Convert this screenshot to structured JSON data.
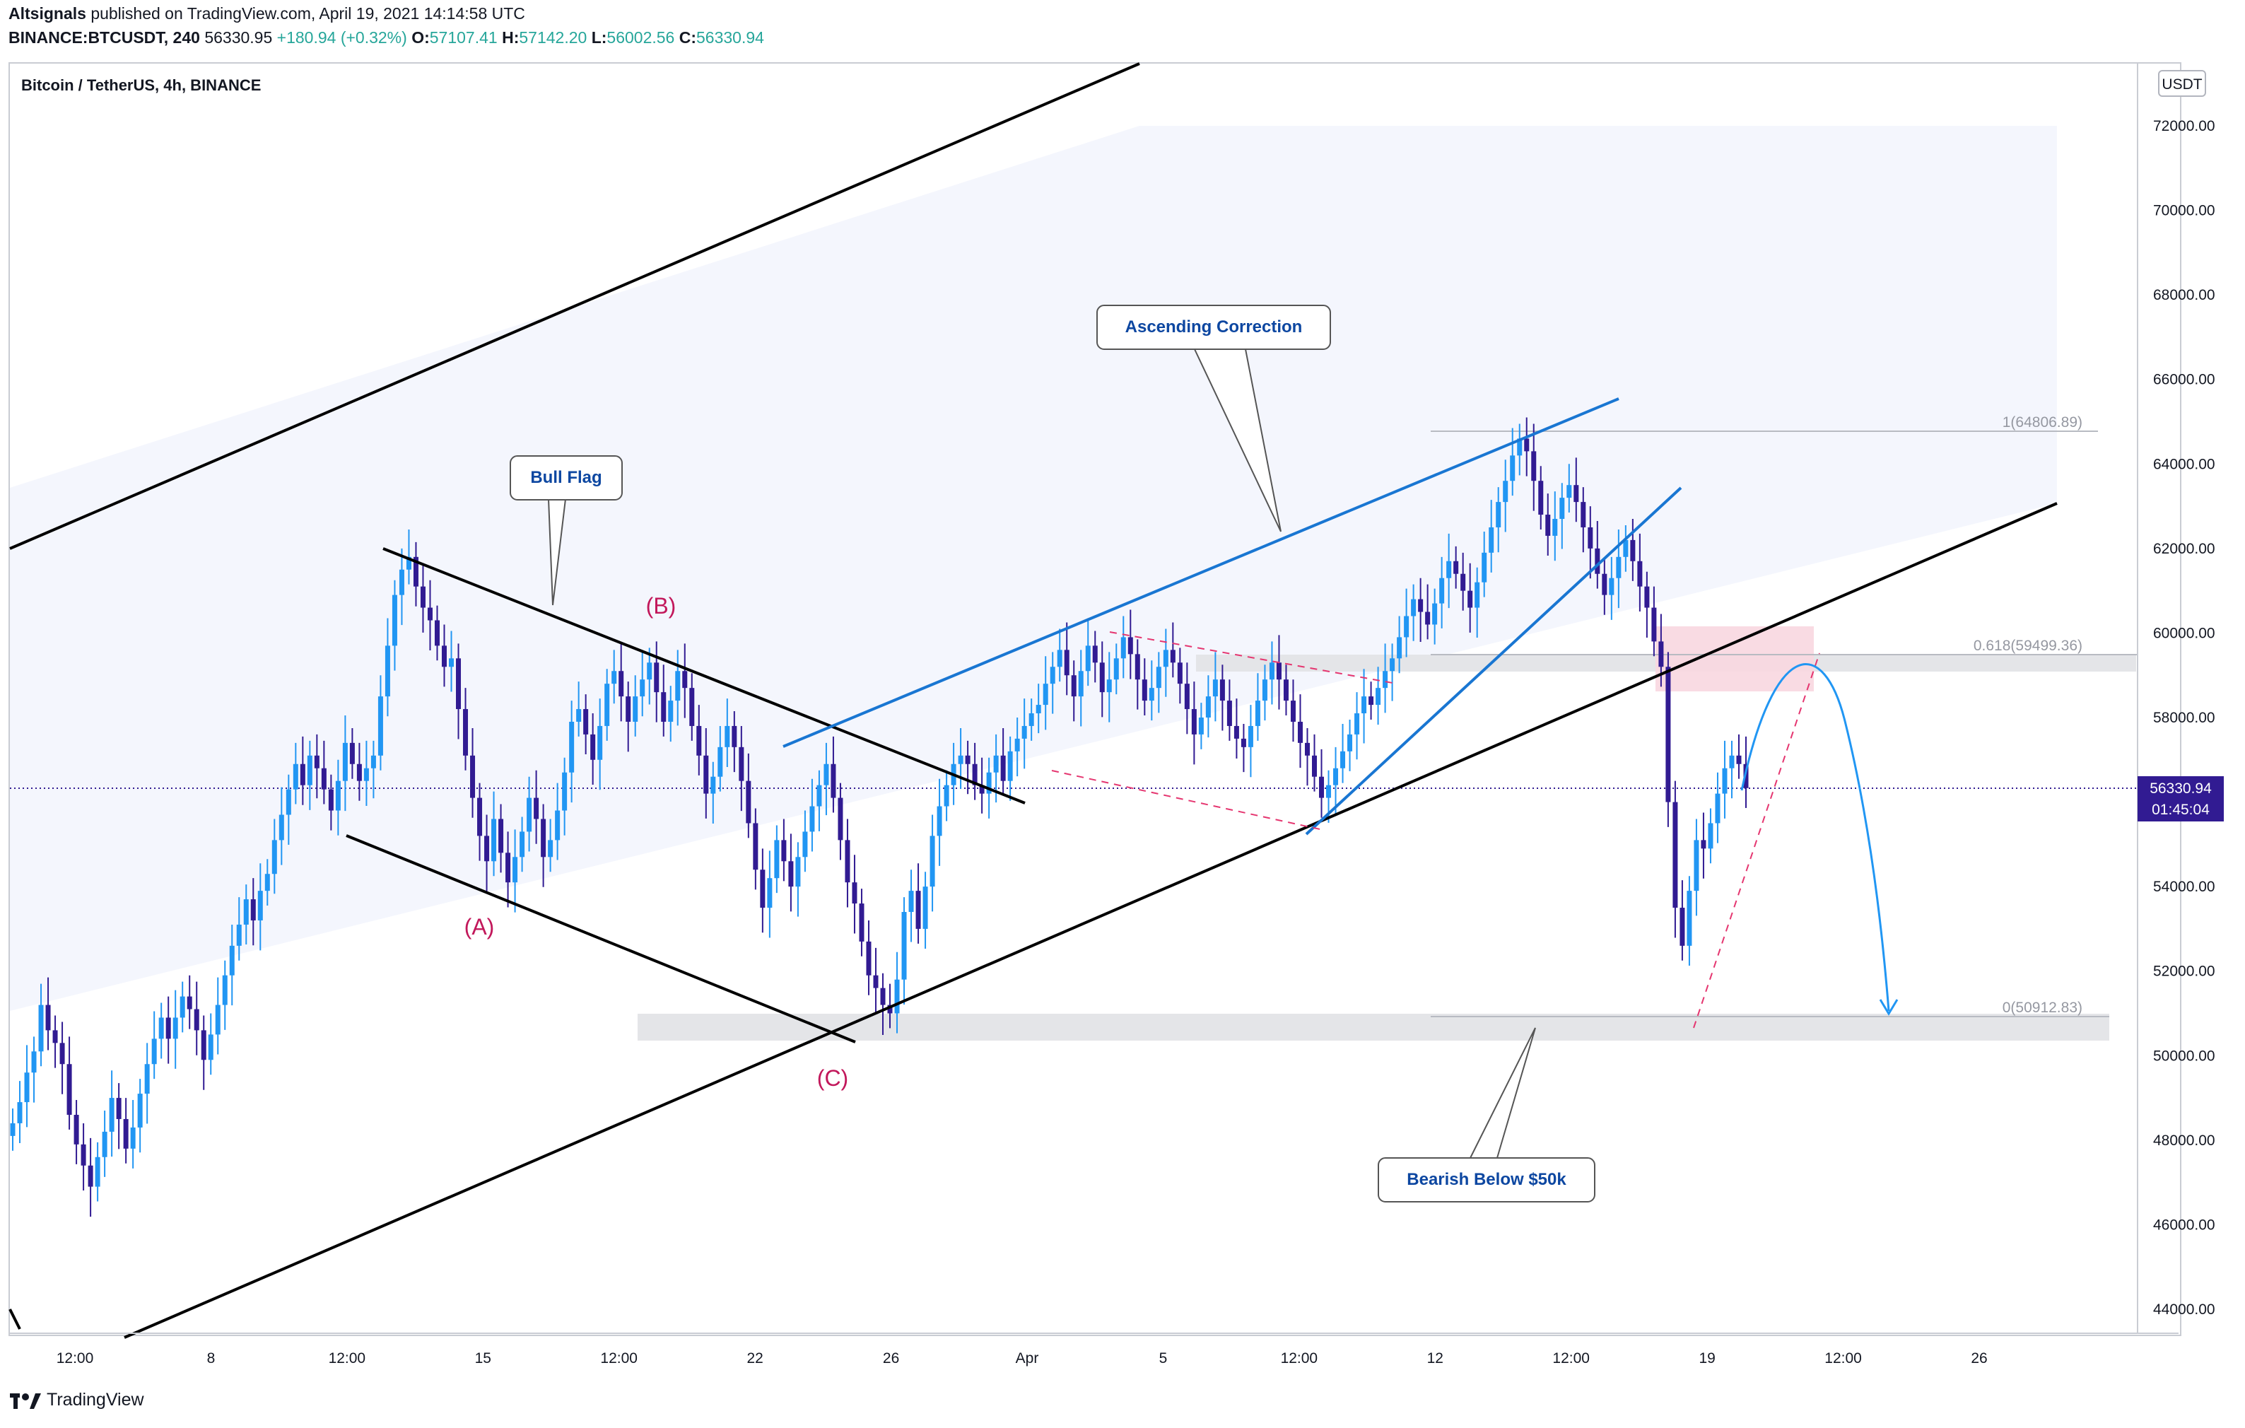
{
  "header": {
    "author": "Altsignals",
    "published_text": "published on TradingView.com, April 19, 2021 14:14:58 UTC",
    "symbol": "BINANCE:BTCUSDT, 240",
    "last": "56330.95",
    "change": "+180.94 (+0.32%)",
    "o_label": "O:",
    "o": "57107.41",
    "h_label": "H:",
    "h": "57142.20",
    "l_label": "L:",
    "l": "56002.56",
    "c_label": "C:",
    "c": "56330.94"
  },
  "chart_title": "Bitcoin / TetherUS, 4h, BINANCE",
  "currency_badge": "USDT",
  "price_badge": {
    "price": "56330.94",
    "countdown": "01:45:04"
  },
  "annotations": {
    "bull_flag": "Bull Flag",
    "ascending_correction": "Ascending Correction",
    "bearish": "Bearish Below $50k",
    "wave_a": "(A)",
    "wave_b": "(B)",
    "wave_c": "(C)",
    "fib_1": "1(64806.89)",
    "fib_0618": "0.618(59499.36)",
    "fib_0": "0(50912.83)"
  },
  "footer": {
    "brand": "TradingView"
  },
  "colors": {
    "up": "#2196f3",
    "down": "#311b92",
    "wave": "#c2185b",
    "trend_blue": "#1976d2",
    "badge": "#311b92"
  },
  "chart_data": {
    "type": "candlestick",
    "symbol": "BTCUSDT",
    "interval": "4h",
    "ylim": [
      43000,
      73500
    ],
    "y_ticks": [
      44000,
      46000,
      48000,
      50000,
      52000,
      54000,
      56000,
      58000,
      60000,
      62000,
      64000,
      66000,
      68000,
      70000,
      72000
    ],
    "y_tick_labels": [
      "44000.00",
      "46000.00",
      "48000.00",
      "50000.00",
      "52000.00",
      "54000.00",
      "56000.00",
      "58000.00",
      "60000.00",
      "62000.00",
      "64000.00",
      "66000.00",
      "68000.00",
      "70000.00",
      "72000.00"
    ],
    "x_ticks": [
      "12:00",
      "8",
      "12:00",
      "15",
      "12:00",
      "22",
      "26",
      "Apr",
      "5",
      "12:00",
      "12",
      "12:00",
      "19",
      "12:00",
      "26"
    ],
    "last_price": 56330.94,
    "fib_levels": [
      {
        "level": "1",
        "price": 64806.89
      },
      {
        "level": "0.618",
        "price": 59499.36
      },
      {
        "level": "0",
        "price": 50912.83
      }
    ],
    "closes": [
      48400,
      48900,
      49600,
      50100,
      51200,
      50600,
      50300,
      49800,
      48600,
      47900,
      47400,
      46900,
      47600,
      48200,
      49000,
      48500,
      47800,
      48300,
      49100,
      49800,
      50400,
      50900,
      50400,
      50900,
      51400,
      51100,
      50600,
      49900,
      50500,
      51200,
      51900,
      52600,
      53100,
      53700,
      53200,
      53900,
      54300,
      55100,
      55700,
      56300,
      56900,
      56400,
      57100,
      56800,
      56300,
      55800,
      56500,
      57400,
      56900,
      56500,
      56800,
      57100,
      58500,
      59700,
      60900,
      61500,
      61800,
      61100,
      60600,
      60300,
      59700,
      59200,
      59400,
      58200,
      57100,
      56100,
      55200,
      54600,
      55600,
      54800,
      54100,
      54700,
      55300,
      56100,
      55600,
      54700,
      55100,
      55800,
      56700,
      57900,
      58200,
      57600,
      57000,
      57800,
      58800,
      59100,
      58500,
      57900,
      58500,
      58900,
      59300,
      58600,
      57900,
      58400,
      59100,
      58700,
      57800,
      57100,
      56200,
      56600,
      57300,
      57800,
      57300,
      56500,
      55500,
      54400,
      53500,
      54200,
      55100,
      54600,
      54000,
      54700,
      55300,
      55900,
      56400,
      56900,
      56100,
      55100,
      54100,
      53600,
      52700,
      51900,
      51600,
      51200,
      51000,
      51800,
      53400,
      53900,
      53000,
      54000,
      55200,
      55900,
      56400,
      56900,
      57100,
      56900,
      56400,
      56200,
      56700,
      57100,
      56500,
      57200,
      57500,
      57800,
      58100,
      58300,
      58800,
      59200,
      59600,
      59000,
      58500,
      59100,
      59700,
      59300,
      58600,
      58900,
      59400,
      59900,
      59500,
      58900,
      58400,
      58700,
      59200,
      59600,
      59300,
      58800,
      58200,
      57600,
      58000,
      58500,
      58900,
      58400,
      57800,
      57500,
      57300,
      57800,
      58400,
      58900,
      59300,
      58900,
      58400,
      57900,
      57400,
      57100,
      56600,
      56100,
      56400,
      56800,
      57200,
      57600,
      58100,
      58500,
      58300,
      58700,
      59100,
      59400,
      59900,
      60400,
      60800,
      60500,
      60200,
      60700,
      61300,
      61700,
      61400,
      61000,
      60600,
      61200,
      61900,
      62500,
      63100,
      63600,
      64200,
      64600,
      64300,
      63600,
      62800,
      62300,
      62700,
      63200,
      63500,
      63100,
      62500,
      62000,
      61400,
      60900,
      61300,
      61800,
      62200,
      61700,
      61100,
      60600,
      59800,
      59200,
      56000,
      53500,
      52600,
      53900,
      55100,
      54900,
      55500,
      56200,
      56800,
      57100,
      56900,
      56330
    ]
  }
}
